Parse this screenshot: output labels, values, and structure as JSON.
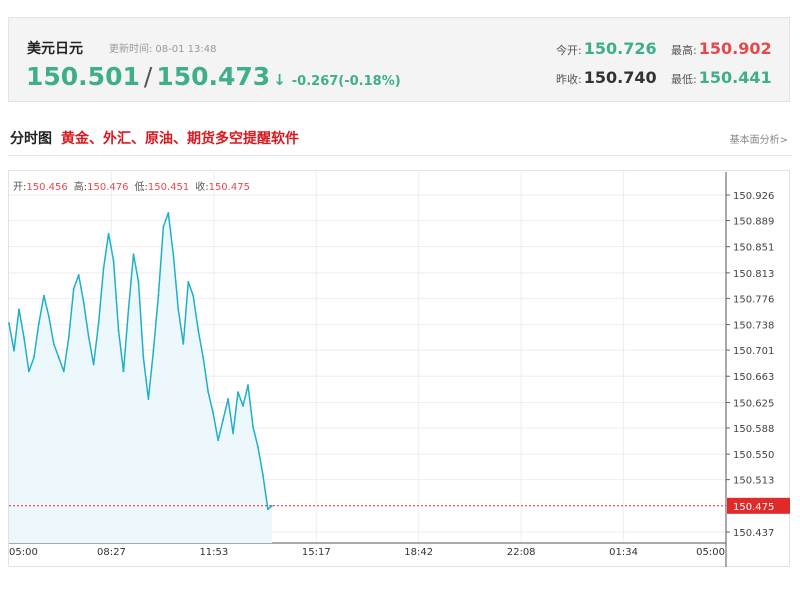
{
  "quote": {
    "name": "美元日元",
    "update_label": "更新时间:",
    "update_time": "08-01 13:48",
    "bid": "150.501",
    "slash": "/",
    "ask": "150.473",
    "arrow": "↓",
    "change": "-0.267(-0.18%)",
    "open_label": "今开:",
    "open_value": "150.726",
    "high_label": "最高:",
    "high_value": "150.902",
    "prev_close_label": "昨收:",
    "prev_close_value": "150.740",
    "low_label": "最低:",
    "low_value": "150.441"
  },
  "section": {
    "title": "分时图",
    "promo": "黄金、外汇、原油、期货多空提醒软件",
    "link": "基本面分析>"
  },
  "ohlc": {
    "open_label": "开:",
    "open": "150.456",
    "high_label": "高:",
    "high": "150.476",
    "low_label": "低:",
    "low": "150.451",
    "close_label": "收:",
    "close": "150.475"
  },
  "colors": {
    "line": "#1fb0c8",
    "area": "#ecf8fb",
    "green": "#3fae8a",
    "red": "#e5494e",
    "last_marker": "#e12b2b"
  },
  "chart_data": {
    "type": "area",
    "title": "",
    "xlabel": "",
    "ylabel": "",
    "x_ticks": [
      "05:00",
      "08:27",
      "11:53",
      "15:17",
      "18:42",
      "22:08",
      "01:34",
      "05:00"
    ],
    "y_ticks": [
      "150.926",
      "150.889",
      "150.851",
      "150.813",
      "150.776",
      "150.738",
      "150.701",
      "150.663",
      "150.625",
      "150.588",
      "150.550",
      "150.513",
      "150.437"
    ],
    "ylim": [
      150.437,
      150.926
    ],
    "last_value": "150.475",
    "grid": true,
    "series": [
      {
        "x": [
          "05:00",
          "05:10",
          "05:20",
          "05:30",
          "05:40",
          "05:50",
          "06:00",
          "06:10",
          "06:20",
          "06:30",
          "06:40",
          "06:50",
          "07:00",
          "07:10",
          "07:20",
          "07:30",
          "07:40",
          "07:50",
          "08:00",
          "08:10",
          "08:20",
          "08:30",
          "08:40",
          "08:50",
          "09:00",
          "09:10",
          "09:20",
          "09:30",
          "09:40",
          "09:50",
          "10:00",
          "10:10",
          "10:20",
          "10:30",
          "10:40",
          "10:50",
          "11:00",
          "11:10",
          "11:20",
          "11:30",
          "11:40",
          "11:50",
          "12:00",
          "12:10",
          "12:20",
          "12:30",
          "12:40",
          "12:50",
          "13:00",
          "13:10",
          "13:20",
          "13:30",
          "13:40",
          "13:48"
        ],
        "values": [
          150.74,
          150.7,
          150.76,
          150.72,
          150.67,
          150.69,
          150.74,
          150.78,
          150.75,
          150.71,
          150.69,
          150.67,
          150.72,
          150.79,
          150.81,
          150.77,
          150.72,
          150.68,
          150.74,
          150.82,
          150.87,
          150.83,
          150.73,
          150.67,
          150.76,
          150.84,
          150.8,
          150.69,
          150.63,
          150.7,
          150.78,
          150.88,
          150.9,
          150.84,
          150.76,
          150.71,
          150.8,
          150.78,
          150.73,
          150.69,
          150.64,
          150.61,
          150.57,
          150.6,
          150.63,
          150.58,
          150.64,
          150.62,
          150.65,
          150.59,
          150.56,
          150.52,
          150.47,
          150.475
        ]
      }
    ]
  }
}
